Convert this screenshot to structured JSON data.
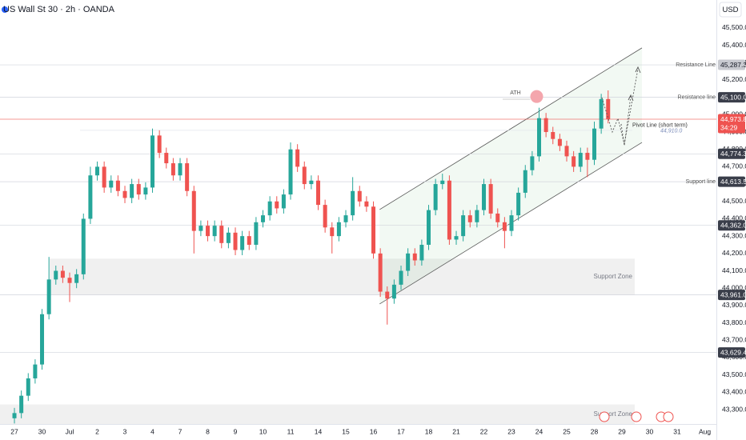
{
  "chart_data": {
    "type": "candlestick",
    "title": "US Wall St 30 · 2h · OANDA",
    "currency": "USD",
    "up_color": "#26a69a",
    "down_color": "#ef5350",
    "open": [
      43250,
      43280,
      43380,
      43480,
      43560,
      43850,
      44050,
      44100,
      44060,
      44030,
      44080,
      44400,
      44650,
      44700,
      44580,
      44620,
      44560,
      44520,
      44600,
      44540,
      44580,
      44880,
      44780,
      44720,
      44650,
      44720,
      44560,
      44330,
      44360,
      44300,
      44360,
      44260,
      44320,
      44220,
      44300,
      44250,
      44380,
      44420,
      44500,
      44460,
      44540,
      44800,
      44700,
      44600,
      44620,
      44480,
      44350,
      44300,
      44380,
      44420,
      44560,
      44500,
      44470,
      44200,
      43980,
      43940,
      44020,
      44100,
      44200,
      44160,
      44250,
      44450,
      44600,
      44620,
      44280,
      44300,
      44420,
      44380,
      44450,
      44600,
      44430,
      44380,
      44330,
      44420,
      44550,
      44680,
      44760,
      44980,
      44900,
      44860,
      44820,
      44760,
      44700,
      44780,
      44740,
      44920,
      45090
    ],
    "high": [
      43310,
      43410,
      43510,
      43590,
      43880,
      44180,
      44130,
      44130,
      44090,
      44110,
      44430,
      44700,
      44730,
      44730,
      44650,
      44650,
      44590,
      44630,
      44630,
      44610,
      44920,
      44910,
      44810,
      44750,
      44750,
      44750,
      44590,
      44390,
      44390,
      44390,
      44390,
      44350,
      44350,
      44330,
      44330,
      44410,
      44450,
      44530,
      44530,
      44570,
      44840,
      44830,
      44730,
      44650,
      44650,
      44510,
      44380,
      44410,
      44450,
      44640,
      44590,
      44530,
      44500,
      44230,
      44010,
      44050,
      44130,
      44230,
      44230,
      44280,
      44480,
      44630,
      44660,
      44650,
      44330,
      44450,
      44450,
      44480,
      44630,
      44630,
      44460,
      44410,
      44450,
      44580,
      44710,
      44790,
      45040,
      45010,
      44930,
      44890,
      44850,
      44790,
      44810,
      44810,
      44960,
      45120,
      45140
    ],
    "low": [
      43220,
      43250,
      43350,
      43450,
      43530,
      43820,
      44020,
      44030,
      43920,
      44000,
      44050,
      44370,
      44620,
      44550,
      44550,
      44530,
      44490,
      44490,
      44510,
      44510,
      44550,
      44750,
      44690,
      44620,
      44620,
      44530,
      44200,
      44300,
      44270,
      44270,
      44230,
      44230,
      44190,
      44190,
      44220,
      44220,
      44350,
      44390,
      44430,
      44430,
      44510,
      44670,
      44570,
      44570,
      44450,
      44320,
      44200,
      44270,
      44350,
      44390,
      44470,
      44440,
      44170,
      43950,
      43790,
      43910,
      43990,
      44070,
      44130,
      44130,
      44220,
      44420,
      44570,
      44250,
      44250,
      44270,
      44350,
      44350,
      44420,
      44400,
      44350,
      44230,
      44300,
      44390,
      44520,
      44650,
      44730,
      44870,
      44830,
      44790,
      44730,
      44670,
      44670,
      44640,
      44710,
      44890,
      44950
    ],
    "close": [
      43280,
      43380,
      43480,
      43560,
      43850,
      44050,
      44100,
      44060,
      44030,
      44080,
      44400,
      44650,
      44700,
      44580,
      44620,
      44560,
      44520,
      44600,
      44540,
      44580,
      44880,
      44780,
      44720,
      44650,
      44720,
      44560,
      44330,
      44360,
      44300,
      44360,
      44260,
      44320,
      44220,
      44300,
      44250,
      44380,
      44420,
      44500,
      44460,
      44540,
      44800,
      44700,
      44600,
      44620,
      44480,
      44350,
      44300,
      44380,
      44420,
      44560,
      44500,
      44470,
      44200,
      43980,
      43940,
      44020,
      44100,
      44200,
      44160,
      44250,
      44450,
      44600,
      44620,
      44280,
      44300,
      44420,
      44380,
      44450,
      44600,
      44430,
      44380,
      44330,
      44420,
      44550,
      44680,
      44760,
      44980,
      44900,
      44860,
      44820,
      44760,
      44700,
      44780,
      44740,
      44920,
      45090,
      44973.8
    ],
    "xlim": [
      -2.09,
      101.68
    ],
    "ylim": [
      43217,
      45661
    ],
    "xticks": [
      {
        "value": 0,
        "label": "27"
      },
      {
        "value": 4,
        "label": "30"
      },
      {
        "value": 8,
        "label": "Jul"
      },
      {
        "value": 12,
        "label": "2"
      },
      {
        "value": 16,
        "label": "3"
      },
      {
        "value": 20,
        "label": "4"
      },
      {
        "value": 24,
        "label": "7"
      },
      {
        "value": 28,
        "label": "8"
      },
      {
        "value": 32,
        "label": "9"
      },
      {
        "value": 36,
        "label": "10"
      },
      {
        "value": 40,
        "label": "11"
      },
      {
        "value": 44,
        "label": "14"
      },
      {
        "value": 48,
        "label": "15"
      },
      {
        "value": 52,
        "label": "16"
      },
      {
        "value": 56,
        "label": "17"
      },
      {
        "value": 60,
        "label": "18"
      },
      {
        "value": 64,
        "label": "21"
      },
      {
        "value": 68,
        "label": "22"
      },
      {
        "value": 72,
        "label": "23"
      },
      {
        "value": 76,
        "label": "24"
      },
      {
        "value": 80,
        "label": "25"
      },
      {
        "value": 84,
        "label": "28"
      },
      {
        "value": 88,
        "label": "29"
      },
      {
        "value": 92,
        "label": "30"
      },
      {
        "value": 96,
        "label": "31"
      },
      {
        "value": 100,
        "label": "Aug"
      }
    ],
    "yticks": [
      {
        "value": 45500,
        "label": "45,500.0"
      },
      {
        "value": 45400,
        "label": "45,400.0"
      },
      {
        "value": 45300,
        "label": "45,300.0"
      },
      {
        "value": 45200,
        "label": "45,200.0"
      },
      {
        "value": 45100,
        "label": "45,100.0"
      },
      {
        "value": 45000,
        "label": "45,000.0"
      },
      {
        "value": 44900,
        "label": "44,900.0"
      },
      {
        "value": 44800,
        "label": "44,800.0"
      },
      {
        "value": 44700,
        "label": "44,700.0"
      },
      {
        "value": 44600,
        "label": "44,600.0"
      },
      {
        "value": 44500,
        "label": "44,500.0"
      },
      {
        "value": 44400,
        "label": "44,400.0"
      },
      {
        "value": 44300,
        "label": "44,300.0"
      },
      {
        "value": 44200,
        "label": "44,200.0"
      },
      {
        "value": 44100,
        "label": "44,100.0"
      },
      {
        "value": 44000,
        "label": "44,000.0"
      },
      {
        "value": 43900,
        "label": "43,900.0"
      },
      {
        "value": 43800,
        "label": "43,800.0"
      },
      {
        "value": 43700,
        "label": "43,700.0"
      },
      {
        "value": 43600,
        "label": "43,600.0"
      },
      {
        "value": 43500,
        "label": "43,500.0"
      },
      {
        "value": 43400,
        "label": "43,400.0"
      },
      {
        "value": 43300,
        "label": "43,300.0"
      }
    ],
    "levels": [
      {
        "value": 45287.3,
        "label": "45,287.3"
      },
      {
        "value": 45100,
        "label": "45,100.0"
      },
      {
        "value": 44774.3,
        "label": "44,774.3"
      },
      {
        "value": 44613.5,
        "label": "44,613.5"
      },
      {
        "value": 44362,
        "label": "44,362.0"
      },
      {
        "value": 43961,
        "label": "43,961.0"
      },
      {
        "value": 43629.4,
        "label": "43,629.4"
      }
    ],
    "last_price": {
      "value": 44973.8,
      "label": "44,973.8"
    },
    "countdown": "34:29",
    "pivot_level": {
      "value": 44910,
      "label": "44,910.0"
    },
    "zones": [
      {
        "label": "Support Zone",
        "from": 43961,
        "to": 44170
      },
      {
        "label": "Support Zone",
        "from": 43217,
        "to": 43330
      }
    ],
    "channel": {
      "x": [
        52.9,
        90.9
      ],
      "upper": [
        44453,
        45385
      ],
      "lower": [
        43909,
        44840
      ]
    },
    "annotations": {
      "ath": "ATH",
      "resistance_top": "Resistance Line",
      "resistance": "Resistance line",
      "pivot": "Pivot Line (short term)",
      "support": "Support line"
    }
  }
}
